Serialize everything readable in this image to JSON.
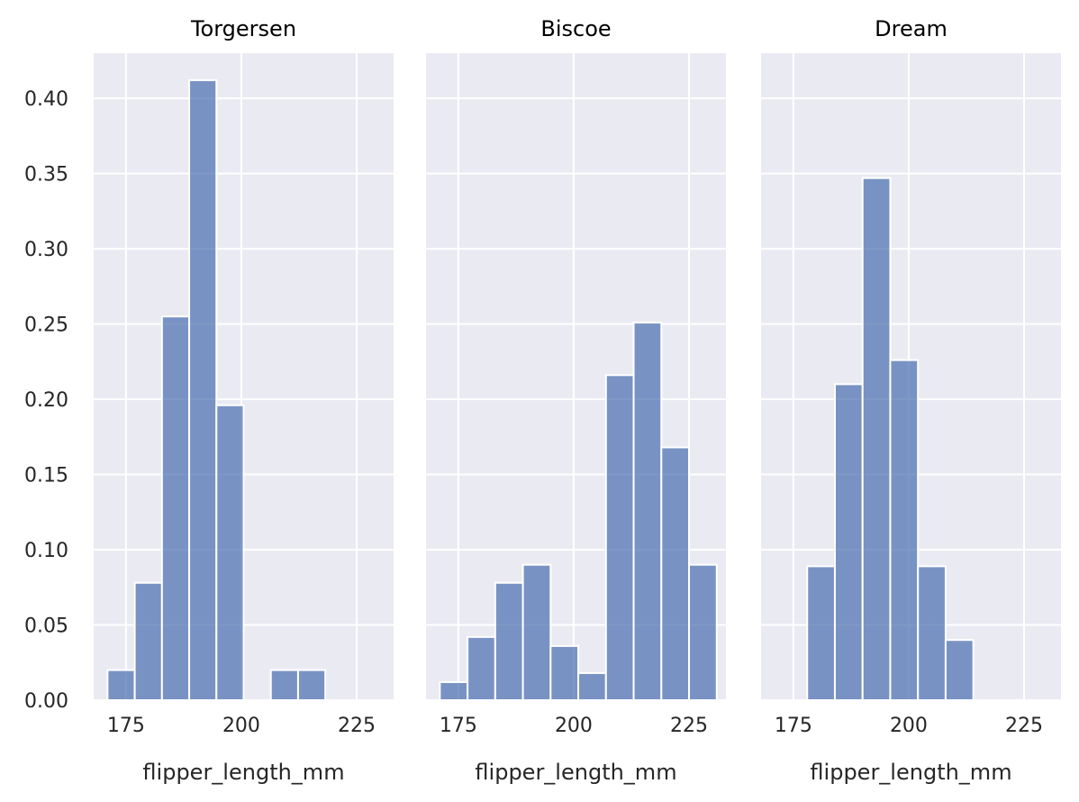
{
  "chart_data": {
    "type": "bar",
    "kind": "histogram",
    "colors": {
      "bar": "#4c72b0",
      "background": "#eaeaf2",
      "grid": "#ffffff"
    },
    "grid": true,
    "sharey": true,
    "ylim": [
      0,
      0.43
    ],
    "yticks": [
      0.0,
      0.05,
      0.1,
      0.15,
      0.2,
      0.25,
      0.3,
      0.35,
      0.4
    ],
    "ytick_labels": [
      "0.00",
      "0.05",
      "0.10",
      "0.15",
      "0.20",
      "0.25",
      "0.30",
      "0.35",
      "0.40"
    ],
    "xlim": [
      168.0,
      233.0
    ],
    "xticks": [
      175,
      200,
      225
    ],
    "xtick_labels": [
      "175",
      "200",
      "225"
    ],
    "panels": [
      {
        "title": "Torgersen",
        "xlabel": "flipper_length_mm",
        "bins": [
          {
            "x0": 171.0,
            "x1": 176.9,
            "value": 0.02
          },
          {
            "x0": 176.9,
            "x1": 182.8,
            "value": 0.078
          },
          {
            "x0": 182.8,
            "x1": 188.7,
            "value": 0.255
          },
          {
            "x0": 188.7,
            "x1": 194.6,
            "value": 0.412
          },
          {
            "x0": 194.6,
            "x1": 200.5,
            "value": 0.196
          },
          {
            "x0": 200.5,
            "x1": 206.4,
            "value": 0.0
          },
          {
            "x0": 206.4,
            "x1": 212.3,
            "value": 0.02
          },
          {
            "x0": 212.3,
            "x1": 218.2,
            "value": 0.02
          }
        ]
      },
      {
        "title": "Biscoe",
        "xlabel": "flipper_length_mm",
        "bins": [
          {
            "x0": 171.0,
            "x1": 177.0,
            "value": 0.012
          },
          {
            "x0": 177.0,
            "x1": 183.0,
            "value": 0.042
          },
          {
            "x0": 183.0,
            "x1": 189.0,
            "value": 0.078
          },
          {
            "x0": 189.0,
            "x1": 195.0,
            "value": 0.09
          },
          {
            "x0": 195.0,
            "x1": 201.0,
            "value": 0.036
          },
          {
            "x0": 201.0,
            "x1": 207.0,
            "value": 0.018
          },
          {
            "x0": 207.0,
            "x1": 213.0,
            "value": 0.216
          },
          {
            "x0": 213.0,
            "x1": 219.0,
            "value": 0.251
          },
          {
            "x0": 219.0,
            "x1": 225.0,
            "value": 0.168
          },
          {
            "x0": 225.0,
            "x1": 231.0,
            "value": 0.09
          }
        ]
      },
      {
        "title": "Dream",
        "xlabel": "flipper_length_mm",
        "bins": [
          {
            "x0": 178.0,
            "x1": 184.0,
            "value": 0.089
          },
          {
            "x0": 184.0,
            "x1": 190.0,
            "value": 0.21
          },
          {
            "x0": 190.0,
            "x1": 196.0,
            "value": 0.347
          },
          {
            "x0": 196.0,
            "x1": 202.0,
            "value": 0.226
          },
          {
            "x0": 202.0,
            "x1": 208.0,
            "value": 0.089
          },
          {
            "x0": 208.0,
            "x1": 214.0,
            "value": 0.04
          }
        ]
      }
    ]
  }
}
